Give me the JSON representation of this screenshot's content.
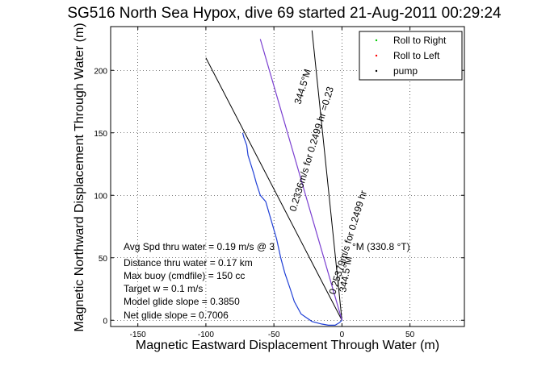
{
  "chart_data": {
    "type": "line",
    "title": "SG516 North Sea Hypox, dive 69 started 21-Aug-2011 00:29:24",
    "xlabel": "Magnetic Eastward Displacement Through Water (m)",
    "ylabel": "Magnetic Northward Displacement Through Water (m)",
    "xlim": [
      -170,
      90
    ],
    "ylim": [
      -5,
      235
    ],
    "xticks": [
      -150,
      -100,
      -50,
      0,
      50
    ],
    "yticks": [
      0,
      50,
      100,
      150,
      200
    ],
    "grid": true,
    "legend_position": "top-right",
    "legend": [
      {
        "label": "Roll to Right",
        "color": "#00cc00"
      },
      {
        "label": "Roll to Left",
        "color": "#ff0000"
      },
      {
        "label": "pump",
        "color": "#000000"
      }
    ],
    "series": [
      {
        "role": "track",
        "color": "#1f3fd6",
        "x": [
          0,
          -2,
          -5,
          -10,
          -15,
          -22,
          -30,
          -35,
          -38,
          -42,
          -45,
          -48,
          -52,
          -56,
          -60,
          -63,
          -65,
          -67,
          -69,
          -70,
          -72,
          -73
        ],
        "y": [
          0,
          -2,
          -4,
          -4,
          -3,
          -1,
          5,
          15,
          25,
          38,
          50,
          65,
          80,
          95,
          100,
          110,
          118,
          125,
          132,
          140,
          146,
          150
        ]
      },
      {
        "role": "heading-line",
        "color": "#7a3fd0",
        "x": [
          0,
          -60
        ],
        "y": [
          0,
          225
        ]
      }
    ],
    "reference_lines": [
      {
        "x": [
          0,
          -100
        ],
        "y": [
          0,
          210
        ]
      },
      {
        "x": [
          0,
          -22
        ],
        "y": [
          0,
          232
        ]
      }
    ],
    "annotations": [
      "Avg Spd thru water =  0.19 m/s @ 3",
      "°M (330.8 °T)",
      "Distance thru water =  0.17 km",
      "Max buoy (cmdfile) = 150 cc",
      "Target w = 0.1 m/s",
      "Model glide slope = 0.3850",
      "Net glide slope = 0.7006"
    ],
    "rotated_labels": [
      "344.5°M",
      "0.2336m/s for 0.2499 hr =0.23",
      "344.5°M",
      "0.25379m/s for 0.2499 hr"
    ]
  }
}
